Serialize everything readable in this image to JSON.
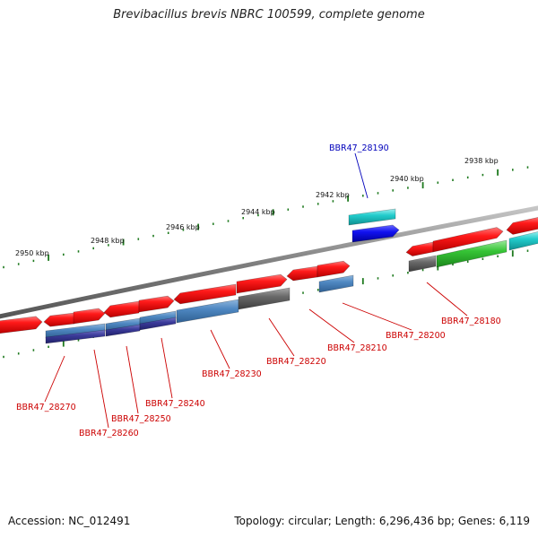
{
  "title": "Brevibacillus brevis NBRC 100599, complete genome",
  "footer": {
    "accession": "Accession: NC_012491",
    "topology": "Topology: circular; Length: 6,296,436 bp; Genes: 6,119"
  },
  "scale_labels": [
    "2950 kbp",
    "2948 kbp",
    "2946 kbp",
    "2944 kbp",
    "2942 kbp",
    "2940 kbp",
    "2938 kbp"
  ],
  "colors": {
    "backbone": "#808080",
    "tick": "#1e7a1e",
    "forward_gene": "#ee0000",
    "reverse_gene": "#ee0000",
    "steel_blue": "#4a7fb5",
    "navy": "#3a3a90",
    "gray_gene": "#646464",
    "cyan_gene": "#22c4c4",
    "blue_gene": "#1010ee",
    "green_gene": "#33bb33",
    "label_red": "#cc0000",
    "label_blue": "#0000bb"
  },
  "gene_labels": [
    {
      "text": "BBR47_28190",
      "color": "blue"
    },
    {
      "text": "BBR47_28180",
      "color": "red"
    },
    {
      "text": "BBR47_28200",
      "color": "red"
    },
    {
      "text": "BBR47_28210",
      "color": "red"
    },
    {
      "text": "BBR47_28220",
      "color": "red"
    },
    {
      "text": "BBR47_28230",
      "color": "red"
    },
    {
      "text": "BBR47_28240",
      "color": "red"
    },
    {
      "text": "BBR47_28250",
      "color": "red"
    },
    {
      "text": "BBR47_28260",
      "color": "red"
    },
    {
      "text": "BBR47_28270",
      "color": "red"
    }
  ]
}
